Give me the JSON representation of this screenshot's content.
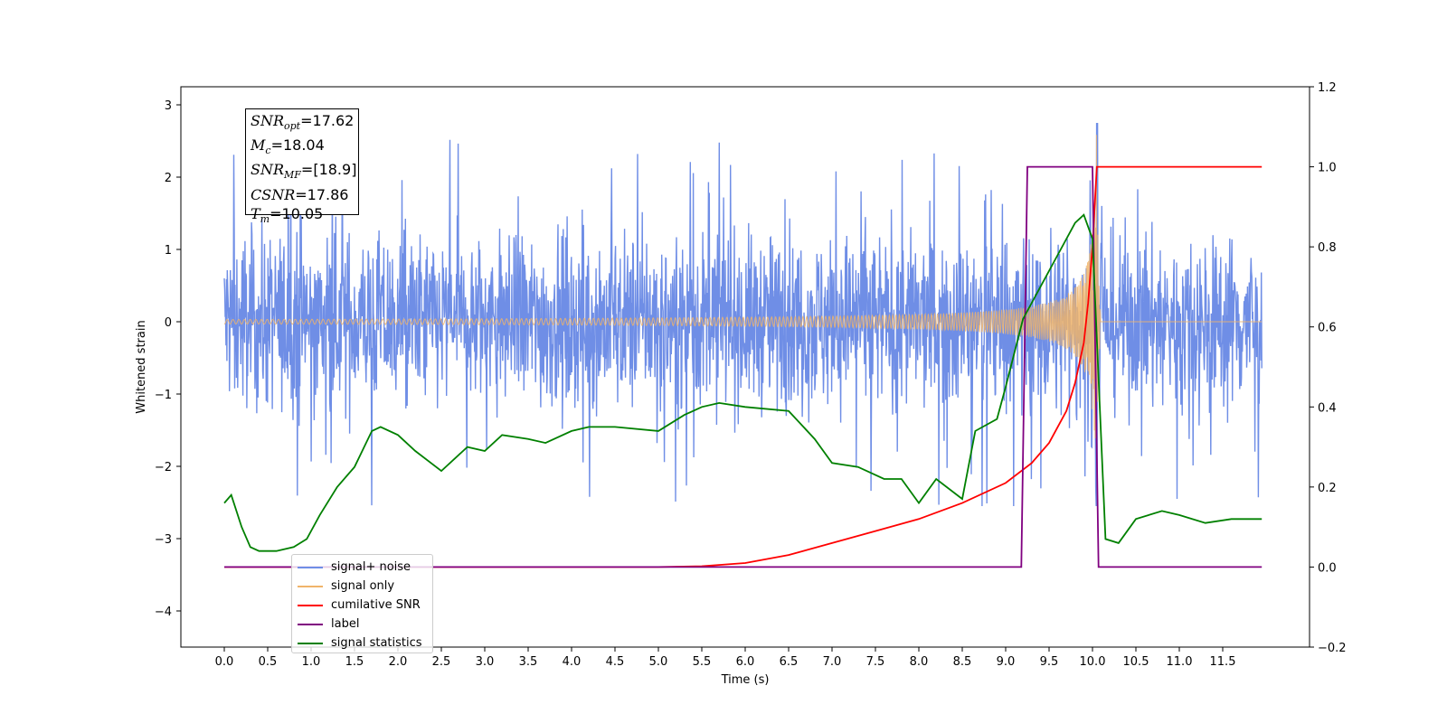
{
  "chart_data": {
    "type": "line",
    "xlabel": "Time (s)",
    "ylabel": "Whitened strain",
    "xlim": [
      -0.5,
      12.5
    ],
    "ylim": [
      -4.5,
      3.25
    ],
    "y2lim": [
      -0.2,
      1.2
    ],
    "x_ticks": [
      "0.0",
      "0.5",
      "1.0",
      "1.5",
      "2.0",
      "2.5",
      "3.0",
      "3.5",
      "4.0",
      "4.5",
      "5.0",
      "5.5",
      "6.0",
      "6.5",
      "7.0",
      "7.5",
      "8.0",
      "8.5",
      "9.0",
      "9.5",
      "10.0",
      "10.5",
      "11.0",
      "11.5"
    ],
    "y_ticks": [
      "3",
      "2",
      "1",
      "0",
      "−1",
      "−2",
      "−3",
      "−4"
    ],
    "y2_ticks": [
      "1.2",
      "1.0",
      "0.8",
      "0.6",
      "0.4",
      "0.2",
      "0.0",
      "−0.2"
    ],
    "grid": false,
    "legend_position": "lower-left",
    "series": [
      {
        "name": "signal+ noise",
        "axis": "left",
        "color": "#6f8ee6",
        "noise_amplitude": 1.2,
        "merger_time": 10.05,
        "merger_peak": 2.75
      },
      {
        "name": "signal only",
        "axis": "left",
        "color": "#f0b46a",
        "merger_time": 10.05,
        "peak_amplitude": 2.6
      },
      {
        "name": "cumilative SNR",
        "axis": "right",
        "color": "#ff0000",
        "points": [
          [
            0.0,
            0.0
          ],
          [
            5.0,
            0.0
          ],
          [
            5.5,
            0.002
          ],
          [
            6.0,
            0.01
          ],
          [
            6.5,
            0.03
          ],
          [
            7.0,
            0.06
          ],
          [
            7.5,
            0.09
          ],
          [
            8.0,
            0.12
          ],
          [
            8.5,
            0.16
          ],
          [
            9.0,
            0.21
          ],
          [
            9.3,
            0.26
          ],
          [
            9.5,
            0.31
          ],
          [
            9.7,
            0.39
          ],
          [
            9.8,
            0.46
          ],
          [
            9.9,
            0.56
          ],
          [
            9.95,
            0.66
          ],
          [
            10.0,
            0.8
          ],
          [
            10.05,
            1.0
          ],
          [
            11.95,
            1.0
          ]
        ]
      },
      {
        "name": "label",
        "axis": "right",
        "color": "#800080",
        "points": [
          [
            0.0,
            0.0
          ],
          [
            9.18,
            0.0
          ],
          [
            9.25,
            1.0
          ],
          [
            10.0,
            1.0
          ],
          [
            10.07,
            0.0
          ],
          [
            11.95,
            0.0
          ]
        ]
      },
      {
        "name": "signal statistics",
        "axis": "right",
        "color": "#008000",
        "points": [
          [
            0.0,
            0.16
          ],
          [
            0.08,
            0.18
          ],
          [
            0.2,
            0.1
          ],
          [
            0.3,
            0.05
          ],
          [
            0.4,
            0.04
          ],
          [
            0.6,
            0.04
          ],
          [
            0.8,
            0.05
          ],
          [
            0.95,
            0.07
          ],
          [
            1.1,
            0.13
          ],
          [
            1.3,
            0.2
          ],
          [
            1.5,
            0.25
          ],
          [
            1.7,
            0.34
          ],
          [
            1.8,
            0.35
          ],
          [
            2.0,
            0.33
          ],
          [
            2.2,
            0.29
          ],
          [
            2.5,
            0.24
          ],
          [
            2.8,
            0.3
          ],
          [
            3.0,
            0.29
          ],
          [
            3.2,
            0.33
          ],
          [
            3.5,
            0.32
          ],
          [
            3.7,
            0.31
          ],
          [
            4.0,
            0.34
          ],
          [
            4.2,
            0.35
          ],
          [
            4.5,
            0.35
          ],
          [
            5.0,
            0.34
          ],
          [
            5.3,
            0.38
          ],
          [
            5.5,
            0.4
          ],
          [
            5.7,
            0.41
          ],
          [
            6.0,
            0.4
          ],
          [
            6.5,
            0.39
          ],
          [
            6.8,
            0.32
          ],
          [
            7.0,
            0.26
          ],
          [
            7.3,
            0.25
          ],
          [
            7.6,
            0.22
          ],
          [
            7.8,
            0.22
          ],
          [
            8.0,
            0.16
          ],
          [
            8.2,
            0.22
          ],
          [
            8.5,
            0.17
          ],
          [
            8.65,
            0.34
          ],
          [
            8.9,
            0.37
          ],
          [
            9.0,
            0.45
          ],
          [
            9.2,
            0.62
          ],
          [
            9.4,
            0.7
          ],
          [
            9.6,
            0.78
          ],
          [
            9.8,
            0.86
          ],
          [
            9.9,
            0.88
          ],
          [
            10.0,
            0.82
          ],
          [
            10.08,
            0.42
          ],
          [
            10.15,
            0.07
          ],
          [
            10.3,
            0.06
          ],
          [
            10.5,
            0.12
          ],
          [
            10.8,
            0.14
          ],
          [
            11.0,
            0.13
          ],
          [
            11.3,
            0.11
          ],
          [
            11.6,
            0.12
          ],
          [
            11.8,
            0.12
          ],
          [
            11.95,
            0.12
          ]
        ]
      }
    ],
    "annotation_box": {
      "snr_opt": "=17.62",
      "mc": "=18.04",
      "snr_mf": "=[18.9]",
      "csnr": "=17.86",
      "tm": "=10.05"
    }
  },
  "legend": {
    "items": [
      {
        "label": "signal+ noise",
        "color": "#6f8ee6"
      },
      {
        "label": "signal only",
        "color": "#f0b46a"
      },
      {
        "label": "cumilative SNR",
        "color": "#ff0000"
      },
      {
        "label": "label",
        "color": "#800080"
      },
      {
        "label": "signal statistics",
        "color": "#008000"
      }
    ]
  }
}
